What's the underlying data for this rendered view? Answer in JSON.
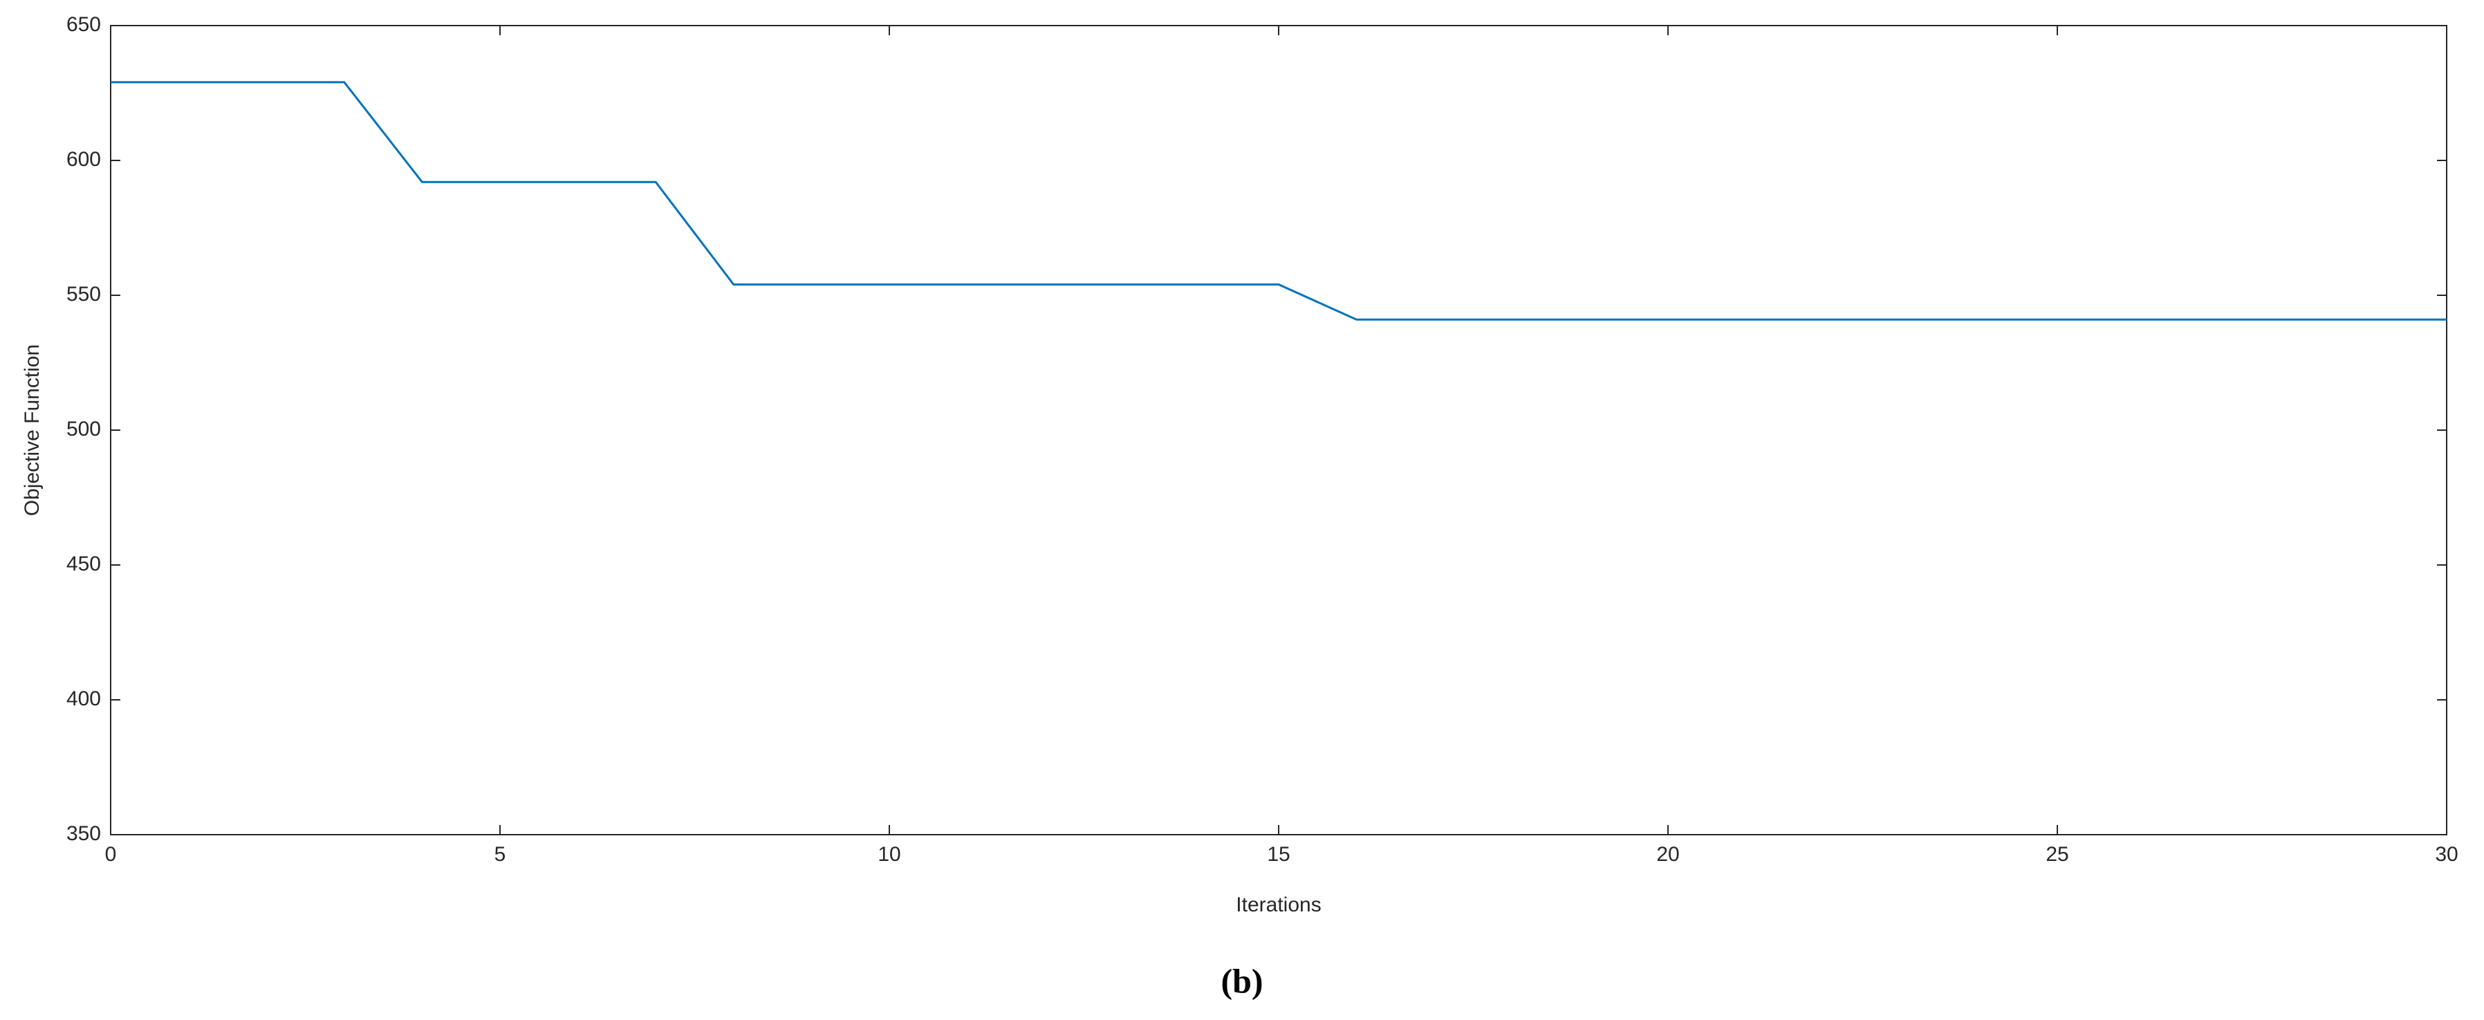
{
  "chart_data": {
    "type": "line",
    "x": [
      0,
      1,
      2,
      3,
      4,
      5,
      6,
      7,
      8,
      9,
      10,
      11,
      12,
      13,
      14,
      15,
      16,
      17,
      18,
      19,
      20,
      21,
      22,
      23,
      24,
      25,
      26,
      27,
      28,
      29,
      30
    ],
    "values": [
      629,
      629,
      629,
      629,
      592,
      592,
      592,
      592,
      554,
      554,
      554,
      554,
      554,
      554,
      554,
      554,
      541,
      541,
      541,
      541,
      541,
      541,
      541,
      541,
      541,
      541,
      541,
      541,
      541,
      541,
      541
    ],
    "color": "#0072bd",
    "xlabel": "Iterations",
    "ylabel": "Objective Function",
    "xlim": [
      0,
      30
    ],
    "xticks": [
      0,
      5,
      10,
      15,
      20,
      25,
      30
    ],
    "ylim": [
      350,
      650
    ],
    "yticks": [
      350,
      400,
      450,
      500,
      550,
      600,
      650
    ],
    "grid": false,
    "caption": "(b)"
  }
}
